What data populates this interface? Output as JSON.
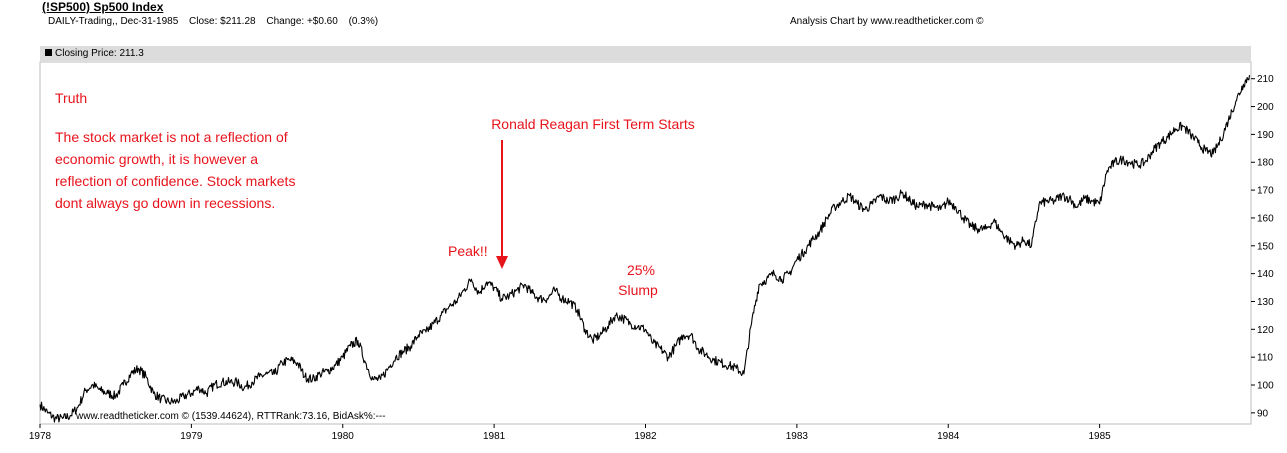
{
  "header": {
    "title": "(!SP500) Sp500 Index",
    "period": "DAILY-Trading,, Dec-31-1985",
    "close": "Close: $211.28",
    "change": "Change: +$0.60",
    "change_pct": "(0.3%)",
    "credit": "Analysis Chart by www.readtheticker.com ©"
  },
  "panel": {
    "legend_label": "Closing Price: 211.3"
  },
  "footer_text": "www.readtheticker.com © (1539.44624), RTTRank:73.16, BidAsk%:---",
  "annotations": {
    "truth_title": "Truth",
    "truth_lines": [
      "The stock market is not a reflection of",
      "economic growth, it is however a",
      "reflection of confidence. Stock markets",
      "dont always go down in recessions."
    ],
    "reagan": "Ronald Reagan First Term Starts",
    "peak": "Peak!!",
    "slump_pct": "25%",
    "slump_word": "Slump",
    "color": "#e8141c"
  },
  "colors": {
    "line": "#000000",
    "panel_header_bg": "#dcdcdc",
    "annotation": "#e8141c"
  },
  "chart_data": {
    "type": "line",
    "title": "(!SP500) Sp500 Index",
    "legend": "top-left",
    "grid": false,
    "xlim": [
      1978.0,
      1986.0
    ],
    "ylim": [
      86,
      216
    ],
    "x_ticks": [
      {
        "value": 1978,
        "label": "1978"
      },
      {
        "value": 1979,
        "label": "1979"
      },
      {
        "value": 1980,
        "label": "1980"
      },
      {
        "value": 1981,
        "label": "1981"
      },
      {
        "value": 1982,
        "label": "1982"
      },
      {
        "value": 1983,
        "label": "1983"
      },
      {
        "value": 1984,
        "label": "1984"
      },
      {
        "value": 1985,
        "label": "1985"
      }
    ],
    "y_ticks": [
      90,
      100,
      110,
      120,
      130,
      140,
      150,
      160,
      170,
      180,
      190,
      200,
      210
    ],
    "series": [
      {
        "name": "Closing Price",
        "x": [
          1978.0,
          1978.05,
          1978.1,
          1978.15,
          1978.2,
          1978.25,
          1978.3,
          1978.35,
          1978.4,
          1978.45,
          1978.5,
          1978.55,
          1978.6,
          1978.65,
          1978.7,
          1978.75,
          1978.8,
          1978.85,
          1978.9,
          1978.95,
          1979.0,
          1979.05,
          1979.1,
          1979.15,
          1979.2,
          1979.25,
          1979.3,
          1979.35,
          1979.4,
          1979.45,
          1979.5,
          1979.55,
          1979.6,
          1979.65,
          1979.7,
          1979.75,
          1979.8,
          1979.85,
          1979.9,
          1979.95,
          1980.0,
          1980.05,
          1980.1,
          1980.15,
          1980.2,
          1980.25,
          1980.3,
          1980.35,
          1980.4,
          1980.45,
          1980.5,
          1980.55,
          1980.6,
          1980.65,
          1980.7,
          1980.75,
          1980.8,
          1980.85,
          1980.9,
          1980.95,
          1981.0,
          1981.05,
          1981.1,
          1981.15,
          1981.2,
          1981.25,
          1981.3,
          1981.35,
          1981.4,
          1981.45,
          1981.5,
          1981.55,
          1981.6,
          1981.65,
          1981.7,
          1981.75,
          1981.8,
          1981.85,
          1981.9,
          1981.95,
          1982.0,
          1982.05,
          1982.1,
          1982.15,
          1982.2,
          1982.25,
          1982.3,
          1982.35,
          1982.4,
          1982.45,
          1982.5,
          1982.55,
          1982.6,
          1982.65,
          1982.7,
          1982.75,
          1982.8,
          1982.85,
          1982.9,
          1982.95,
          1983.0,
          1983.05,
          1983.1,
          1983.15,
          1983.2,
          1983.25,
          1983.3,
          1983.35,
          1983.4,
          1983.45,
          1983.5,
          1983.55,
          1983.6,
          1983.65,
          1983.7,
          1983.75,
          1983.8,
          1983.85,
          1983.9,
          1983.95,
          1984.0,
          1984.05,
          1984.1,
          1984.15,
          1984.2,
          1984.25,
          1984.3,
          1984.35,
          1984.4,
          1984.45,
          1984.5,
          1984.55,
          1984.6,
          1984.65,
          1984.7,
          1984.75,
          1984.8,
          1984.85,
          1984.9,
          1984.95,
          1985.0,
          1985.05,
          1985.1,
          1985.15,
          1985.2,
          1985.25,
          1985.3,
          1985.35,
          1985.4,
          1985.45,
          1985.5,
          1985.55,
          1985.6,
          1985.65,
          1985.7,
          1985.75,
          1985.8,
          1985.85,
          1985.9,
          1985.95,
          1985.99
        ],
        "values": [
          93,
          90,
          88,
          88,
          89,
          92,
          98,
          100,
          98,
          97,
          96,
          100,
          104,
          106,
          103,
          97,
          95,
          94,
          94,
          96,
          97,
          99,
          97,
          100,
          101,
          101,
          101,
          99,
          101,
          103,
          104,
          104,
          108,
          109,
          108,
          103,
          102,
          104,
          105,
          107,
          110,
          114,
          116,
          108,
          102,
          102,
          106,
          110,
          112,
          114,
          118,
          119,
          122,
          125,
          128,
          130,
          134,
          138,
          133,
          137,
          135,
          131,
          132,
          134,
          136,
          133,
          131,
          131,
          134,
          131,
          130,
          127,
          120,
          116,
          118,
          121,
          125,
          124,
          122,
          121,
          120,
          115,
          113,
          110,
          114,
          118,
          118,
          113,
          111,
          109,
          108,
          107,
          106,
          104,
          122,
          136,
          138,
          140,
          138,
          140,
          145,
          148,
          152,
          155,
          160,
          164,
          166,
          168,
          165,
          163,
          165,
          168,
          166,
          167,
          169,
          166,
          164,
          165,
          164,
          163,
          166,
          164,
          160,
          157,
          156,
          156,
          159,
          155,
          152,
          150,
          152,
          150,
          165,
          166,
          166,
          168,
          167,
          164,
          167,
          166,
          165,
          177,
          180,
          181,
          180,
          179,
          180,
          184,
          187,
          189,
          192,
          193,
          190,
          187,
          184,
          183,
          188,
          195,
          202,
          208,
          211.3
        ]
      }
    ]
  }
}
